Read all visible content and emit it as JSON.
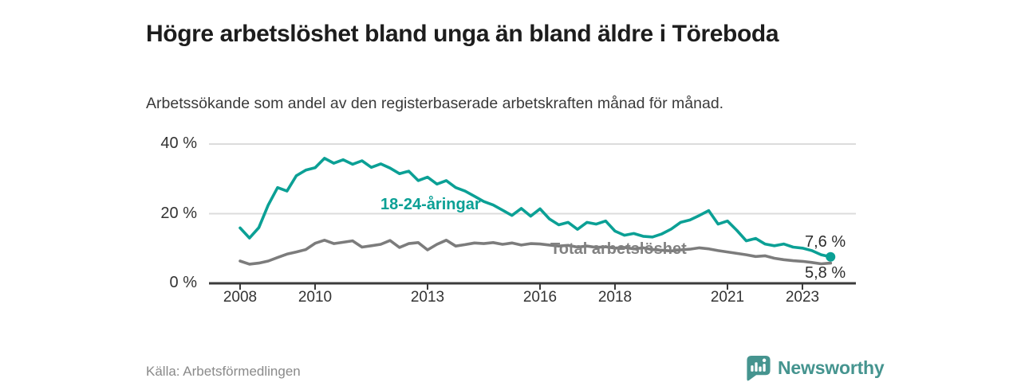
{
  "header": {
    "title": "Högre arbetslöshet bland unga än bland äldre i Töreboda",
    "subtitle": "Arbetssökande som andel av den registerbaserade arbetskraften månad för månad."
  },
  "chart_data": {
    "type": "line",
    "title": "Högre arbetslöshet bland unga än bland äldre i Töreboda",
    "subtitle": "Arbetssökande som andel av den registerbaserade arbetskraften månad för månad.",
    "x_unit": "year",
    "x_start": 2008.0,
    "x_step": 0.25,
    "x_end": 2023.75,
    "ylim": [
      0,
      40
    ],
    "grid": "horizontal",
    "legend_position": "inline-labels",
    "yticks": [
      {
        "value": 0,
        "label": "0 %"
      },
      {
        "value": 20,
        "label": "20 %"
      },
      {
        "value": 40,
        "label": "40 %"
      }
    ],
    "xticks": [
      {
        "value": 2008,
        "label": "2008"
      },
      {
        "value": 2010,
        "label": "2010"
      },
      {
        "value": 2013,
        "label": "2013"
      },
      {
        "value": 2016,
        "label": "2016"
      },
      {
        "value": 2018,
        "label": "2018"
      },
      {
        "value": 2021,
        "label": "2021"
      },
      {
        "value": 2023,
        "label": "2023"
      }
    ],
    "series": [
      {
        "name": "18-24-åringar",
        "color": "#0ba095",
        "end_value": 7.6,
        "end_label": "7,6 %",
        "values": [
          15.9,
          13.0,
          16.0,
          22.5,
          27.5,
          26.5,
          30.9,
          32.5,
          33.2,
          35.9,
          34.5,
          35.5,
          34.2,
          35.2,
          33.3,
          34.3,
          33.1,
          31.5,
          32.2,
          29.5,
          30.5,
          28.5,
          29.5,
          27.5,
          26.5,
          25.0,
          23.5,
          22.5,
          21.0,
          19.5,
          21.5,
          19.3,
          21.4,
          18.5,
          16.8,
          17.5,
          15.5,
          17.5,
          17.0,
          17.9,
          15.0,
          13.8,
          14.3,
          13.5,
          13.3,
          14.2,
          15.6,
          17.5,
          18.2,
          19.5,
          20.9,
          17.0,
          17.9,
          15.2,
          12.2,
          12.9,
          11.3,
          10.8,
          11.3,
          10.4,
          10.1,
          9.4,
          8.2,
          7.6
        ]
      },
      {
        "name": "Total arbetslöshet",
        "color": "#7c7c7c",
        "end_value": 5.8,
        "end_label": "5,8 %",
        "values": [
          6.4,
          5.5,
          5.8,
          6.4,
          7.4,
          8.4,
          9.0,
          9.7,
          11.5,
          12.4,
          11.4,
          11.8,
          12.2,
          10.4,
          10.8,
          11.2,
          12.3,
          10.3,
          11.4,
          11.7,
          9.6,
          11.2,
          12.4,
          10.7,
          11.1,
          11.6,
          11.4,
          11.7,
          11.2,
          11.6,
          11.0,
          11.4,
          11.3,
          11.0,
          10.7,
          10.9,
          10.4,
          10.7,
          10.3,
          10.5,
          10.1,
          10.3,
          9.9,
          10.2,
          9.7,
          9.5,
          9.3,
          9.6,
          9.8,
          10.2,
          9.9,
          9.4,
          9.0,
          8.6,
          8.2,
          7.7,
          7.9,
          7.2,
          6.8,
          6.5,
          6.3,
          6.0,
          5.6,
          5.8
        ]
      }
    ]
  },
  "footer": {
    "source": "Källa: Arbetsförmedlingen",
    "brand": "Newsworthy"
  },
  "colors": {
    "accent_teal": "#0ba095",
    "line_gray": "#7c7c7c",
    "series_label_gray": "#818181",
    "axis": "#3b3b3b",
    "grid": "#dcdcdc",
    "title_text": "#1d1d1d",
    "body_text": "#3a3a3a",
    "muted_text": "#8a8a8a",
    "brand_teal": "#45948f"
  }
}
